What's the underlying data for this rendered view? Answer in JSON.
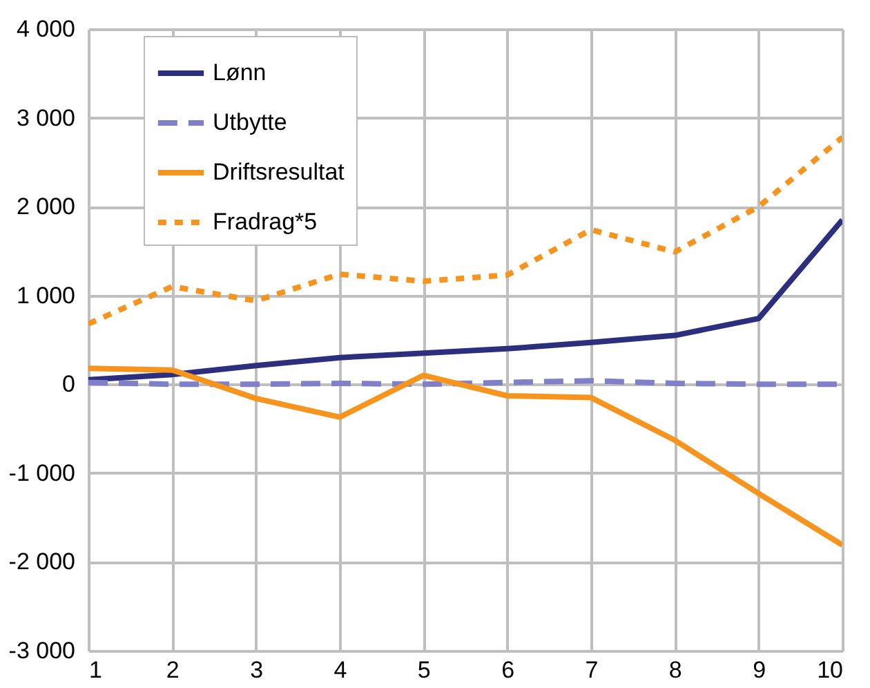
{
  "chart_data": {
    "type": "line",
    "x": [
      1,
      2,
      3,
      4,
      5,
      6,
      7,
      8,
      9,
      10
    ],
    "series": [
      {
        "name": "Lønn",
        "color": "#2b2f7e",
        "line_style": "solid",
        "values": [
          50,
          110,
          210,
          300,
          350,
          400,
          470,
          550,
          740,
          1850
        ]
      },
      {
        "name": "Utbytte",
        "color": "#8080c8",
        "line_style": "dashed",
        "values": [
          20,
          0,
          0,
          10,
          0,
          20,
          40,
          10,
          0,
          0
        ]
      },
      {
        "name": "Driftsresultat",
        "color": "#f7941d",
        "line_style": "solid",
        "values": [
          180,
          160,
          -160,
          -370,
          100,
          -130,
          -150,
          -630,
          -1230,
          -1810
        ]
      },
      {
        "name": "Fradrag*5",
        "color": "#f7941d",
        "line_style": "dotted",
        "values": [
          680,
          1100,
          940,
          1240,
          1160,
          1230,
          1740,
          1490,
          2000,
          2780
        ]
      }
    ],
    "xlim": [
      1,
      10
    ],
    "xticks": [
      1,
      2,
      3,
      4,
      5,
      6,
      7,
      8,
      9,
      10
    ],
    "ylim": [
      -3000,
      4000
    ],
    "yticks": [
      {
        "value": -3000,
        "label": "-3 000"
      },
      {
        "value": -2000,
        "label": "-2 000"
      },
      {
        "value": -1000,
        "label": "-1 000"
      },
      0,
      {
        "value": 1000,
        "label": "1 000"
      },
      {
        "value": 2000,
        "label": "2 000"
      },
      {
        "value": 3000,
        "label": "3 000"
      },
      {
        "value": 4000,
        "label": "4 000"
      }
    ],
    "grid": true,
    "legend": "top left",
    "marker": "none"
  }
}
